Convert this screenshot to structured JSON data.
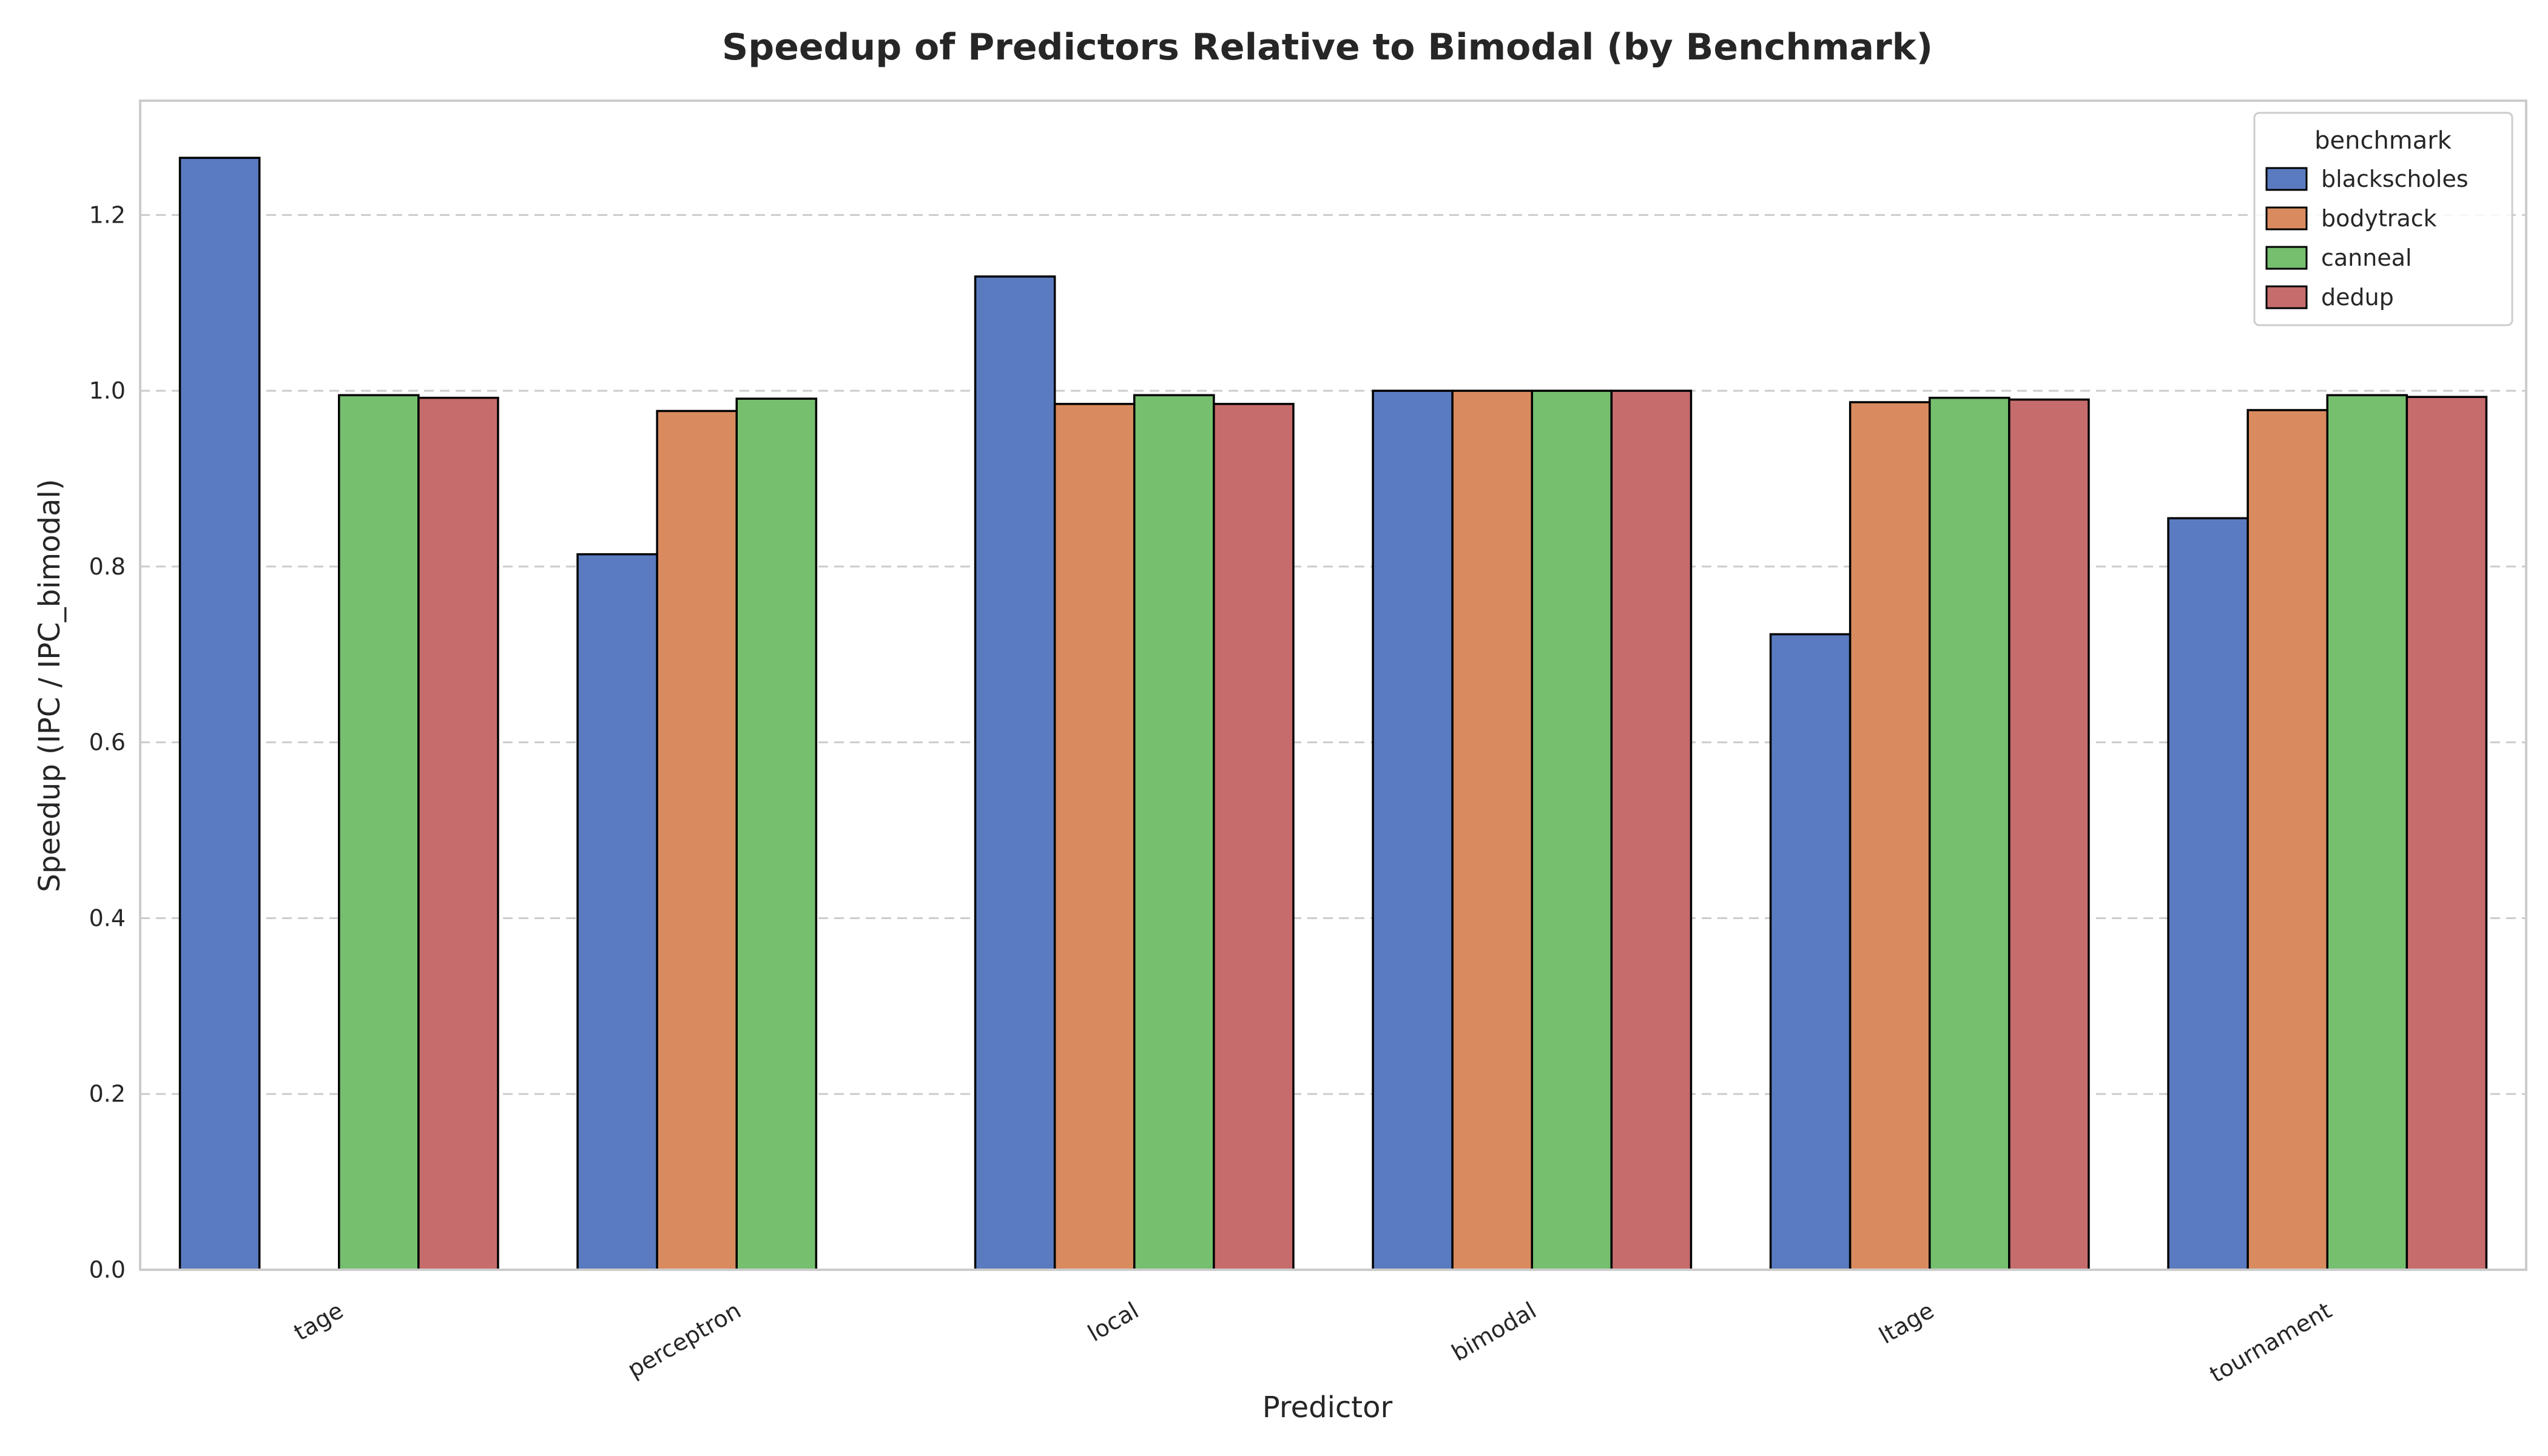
{
  "chart_data": {
    "type": "bar",
    "title": "Speedup of Predictors Relative to Bimodal (by Benchmark)",
    "xlabel": "Predictor",
    "ylabel": "Speedup (IPC / IPC_bimodal)",
    "ylim": [
      0,
      1.33
    ],
    "yticks": [
      "0.0",
      "0.2",
      "0.4",
      "0.6",
      "0.8",
      "1.0",
      "1.2"
    ],
    "grid": "y-dashed",
    "legend": {
      "title": "benchmark",
      "placement": "top-right"
    },
    "categories": [
      "tage",
      "perceptron",
      "local",
      "bimodal",
      "ltage",
      "tournament"
    ],
    "series": [
      {
        "name": "blackscholes",
        "color": "#5a7bbf",
        "values": [
          1.265,
          0.814,
          1.13,
          1.0,
          0.723,
          0.855
        ]
      },
      {
        "name": "bodytrack",
        "color": "#d98b5f",
        "values": [
          null,
          0.977,
          0.985,
          1.0,
          0.987,
          0.978
        ]
      },
      {
        "name": "canneal",
        "color": "#75bf6f",
        "values": [
          0.995,
          0.991,
          0.995,
          1.0,
          0.992,
          0.995
        ]
      },
      {
        "name": "dedup",
        "color": "#c66c6c",
        "values": [
          0.992,
          null,
          0.985,
          1.0,
          0.99,
          0.993
        ]
      }
    ]
  }
}
